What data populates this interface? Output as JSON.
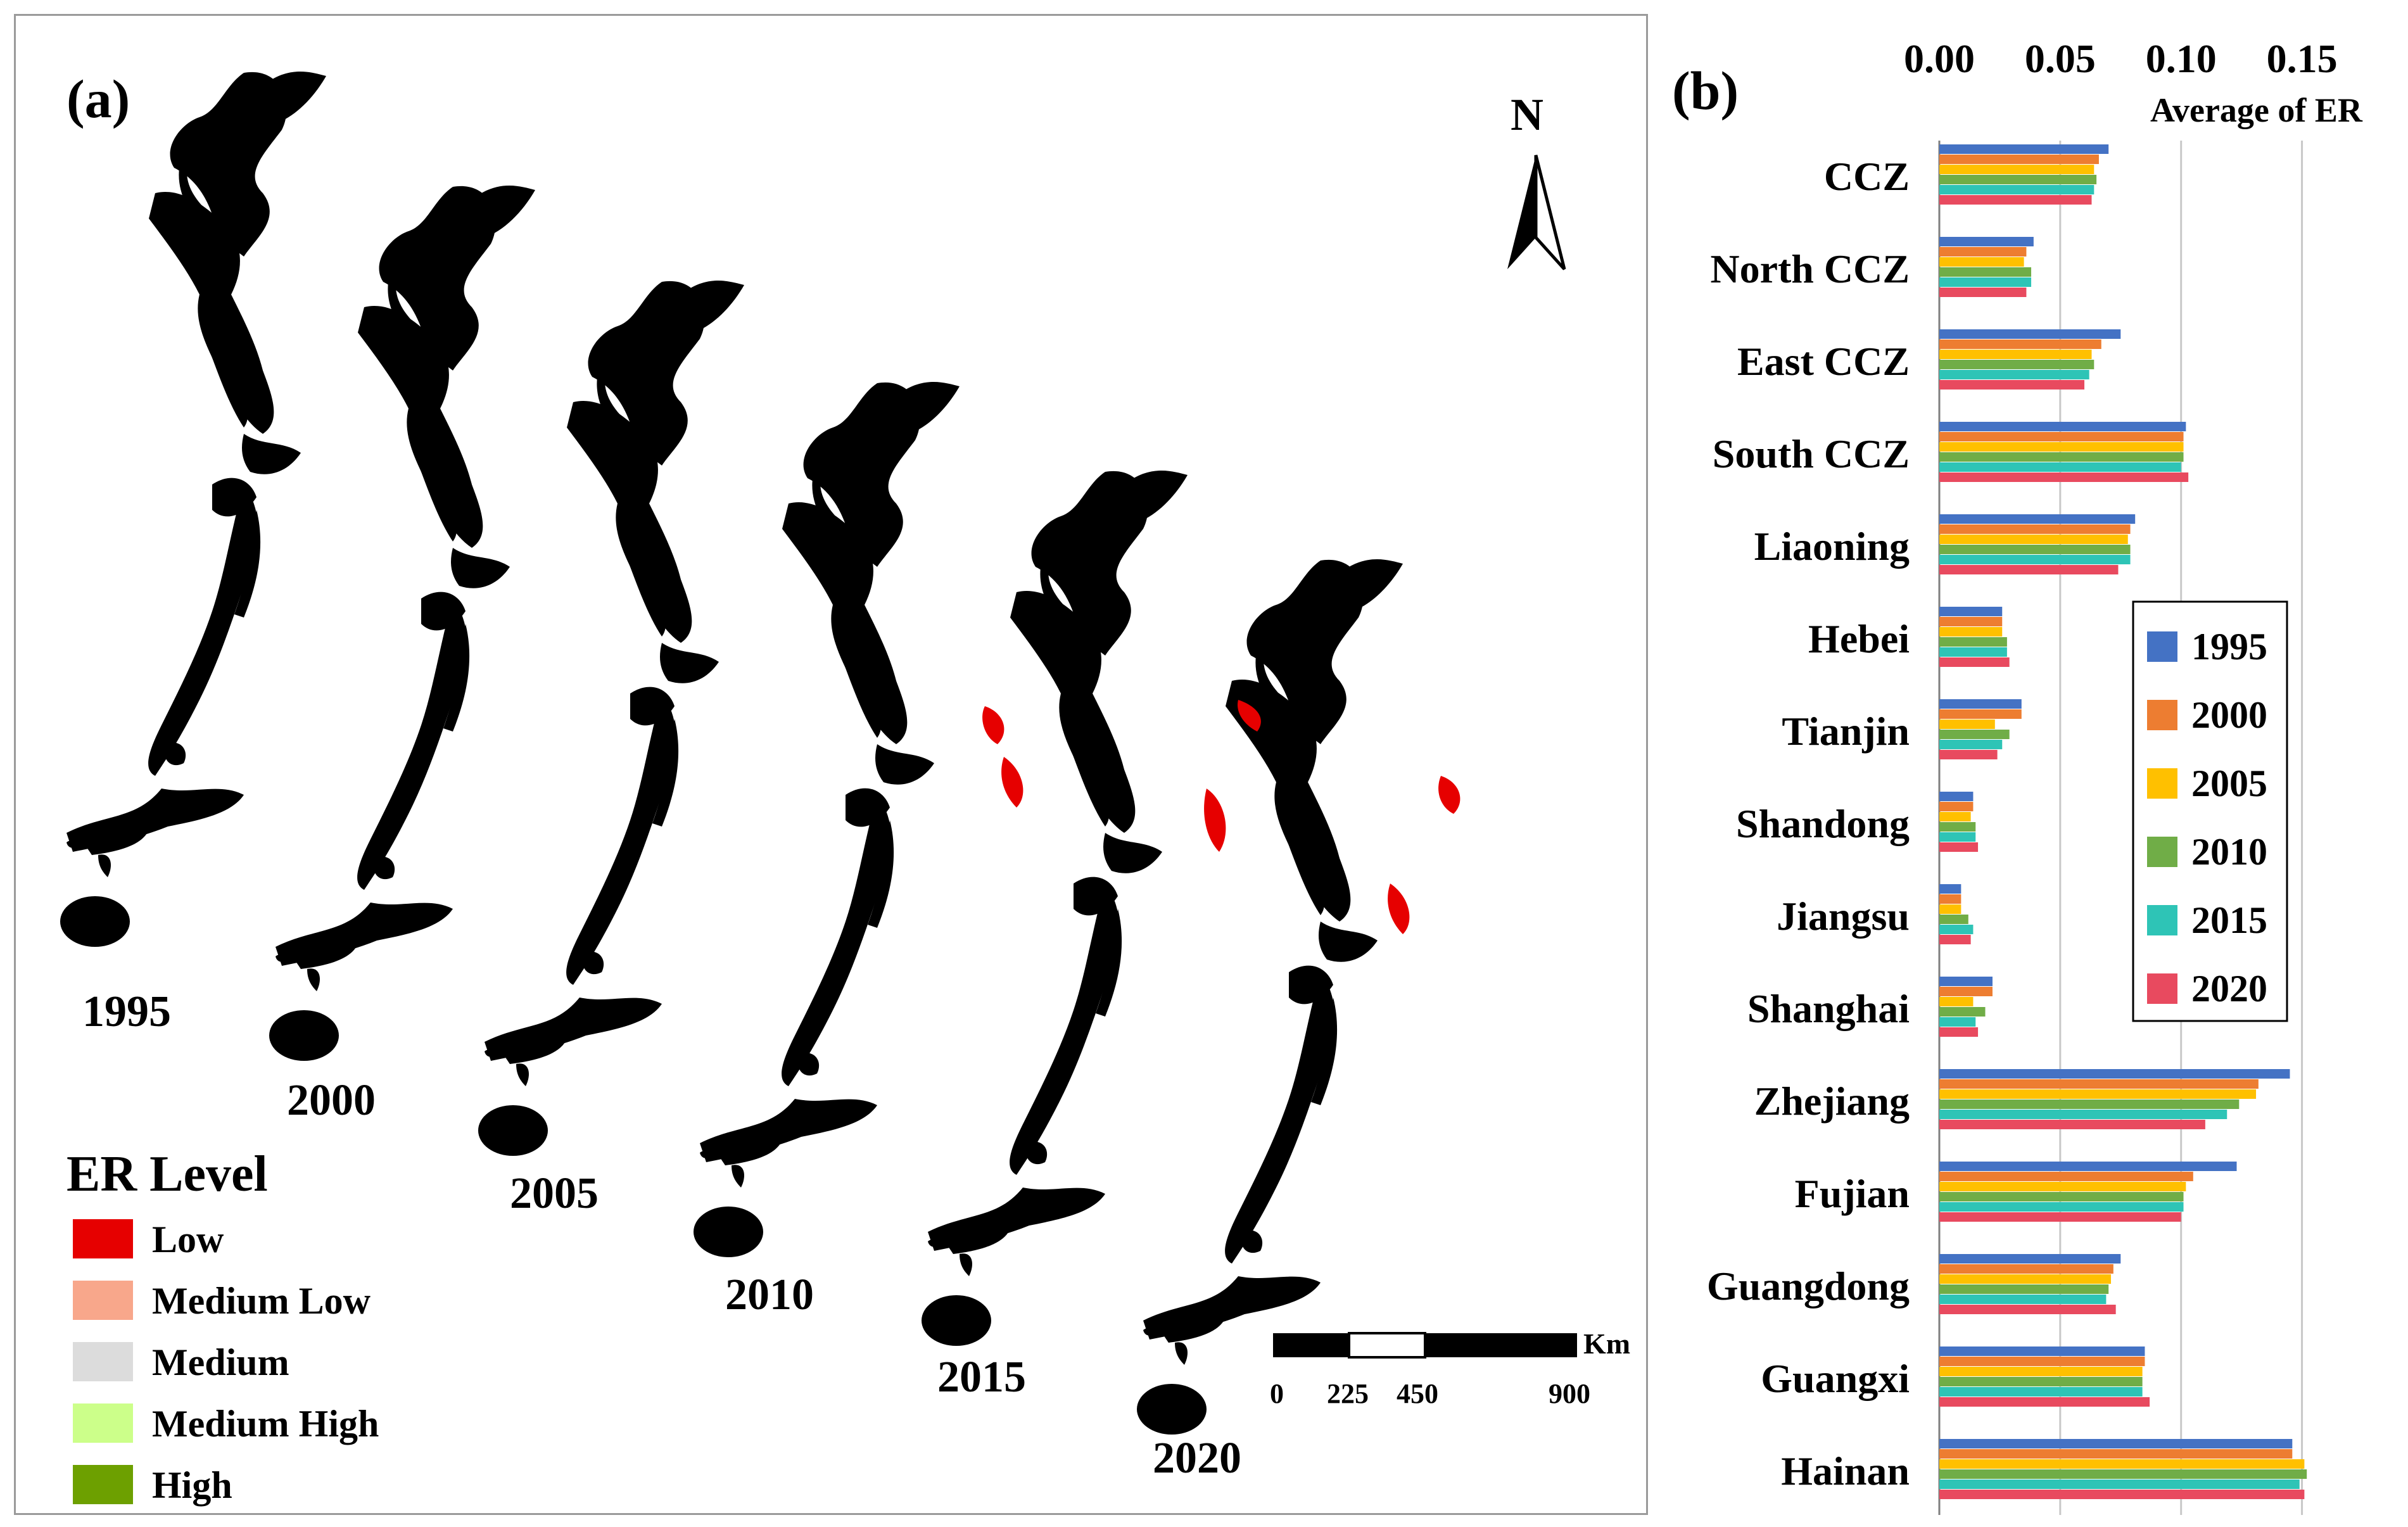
{
  "panel_a": {
    "label": "(a)",
    "north_label": "N",
    "legend_title": "ER  Level",
    "legend": [
      {
        "label": "Low",
        "color": "#e60000"
      },
      {
        "label": "Medium Low",
        "color": "#f8a78b"
      },
      {
        "label": "Medium",
        "color": "#dcdcdc"
      },
      {
        "label": "Medium High",
        "color": "#ccff8a"
      },
      {
        "label": "High",
        "color": "#6da000"
      }
    ],
    "map_years": [
      "1995",
      "2000",
      "2005",
      "2010",
      "2015",
      "2020"
    ],
    "scale_unit": "Km",
    "scale_ticks": [
      "0",
      "225",
      "450",
      "900"
    ]
  },
  "chart_data": {
    "type": "bar",
    "orientation": "horizontal",
    "panel_label": "(b)",
    "xlabel": "Average of ER",
    "xlim": [
      0,
      0.175
    ],
    "xticks": [
      "0.00",
      "0.05",
      "0.10",
      "0.15"
    ],
    "xtick_values": [
      0.0,
      0.05,
      0.1,
      0.15
    ],
    "grid": true,
    "legend_position": "right",
    "categories": [
      "CCZ",
      "North CCZ",
      "East CCZ",
      "South CCZ",
      "Liaoning",
      "Hebei",
      "Tianjin",
      "Shandong",
      "Jiangsu",
      "Shanghai",
      "Zhejiang",
      "Fujian",
      "Guangdong",
      "Guangxi",
      "Hainan"
    ],
    "series": [
      {
        "name": "1995",
        "color": "#4472c4",
        "values": [
          0.07,
          0.039,
          0.075,
          0.102,
          0.081,
          0.026,
          0.034,
          0.014,
          0.009,
          0.022,
          0.145,
          0.123,
          0.075,
          0.085,
          0.146
        ]
      },
      {
        "name": "2000",
        "color": "#ed7d31",
        "values": [
          0.066,
          0.036,
          0.067,
          0.101,
          0.079,
          0.026,
          0.034,
          0.014,
          0.009,
          0.022,
          0.132,
          0.105,
          0.072,
          0.085,
          0.146
        ]
      },
      {
        "name": "2005",
        "color": "#ffc000",
        "values": [
          0.064,
          0.035,
          0.063,
          0.101,
          0.078,
          0.026,
          0.023,
          0.013,
          0.009,
          0.014,
          0.131,
          0.102,
          0.071,
          0.084,
          0.151
        ]
      },
      {
        "name": "2010",
        "color": "#70ad47",
        "values": [
          0.065,
          0.038,
          0.064,
          0.101,
          0.079,
          0.028,
          0.029,
          0.015,
          0.012,
          0.019,
          0.124,
          0.101,
          0.07,
          0.084,
          0.152
        ]
      },
      {
        "name": "2015",
        "color": "#2ec4b6",
        "values": [
          0.064,
          0.038,
          0.062,
          0.1,
          0.079,
          0.028,
          0.026,
          0.015,
          0.014,
          0.015,
          0.119,
          0.101,
          0.069,
          0.084,
          0.149
        ]
      },
      {
        "name": "2020",
        "color": "#e84a5f",
        "values": [
          0.063,
          0.036,
          0.06,
          0.103,
          0.074,
          0.029,
          0.024,
          0.016,
          0.013,
          0.016,
          0.11,
          0.1,
          0.073,
          0.087,
          0.151
        ]
      }
    ]
  }
}
